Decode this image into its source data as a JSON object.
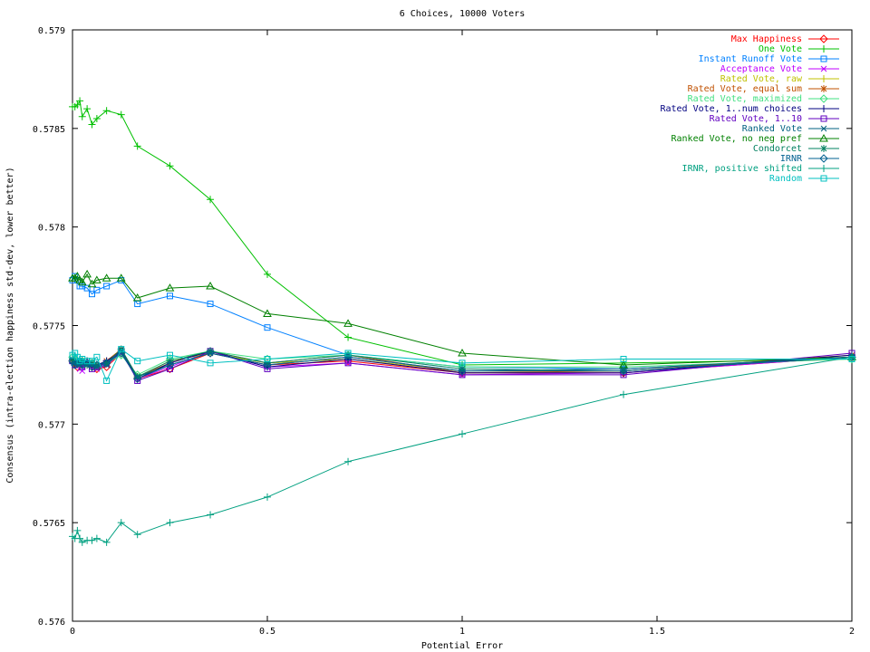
{
  "chart_data": {
    "type": "line",
    "title": "6 Choices, 10000 Voters",
    "xlabel": "Potential Error",
    "ylabel": "Consensus (intra-election happiness std-dev, lower better)",
    "xlim": [
      0,
      2
    ],
    "ylim": [
      0.576,
      0.579
    ],
    "xticks": [
      "0",
      "0.5",
      "1",
      "1.5",
      "2"
    ],
    "yticks": [
      "0.576",
      "0.5765",
      "0.577",
      "0.5775",
      "0.578",
      "0.5785",
      "0.579"
    ],
    "xtick_values": [
      0,
      0.5,
      1,
      1.5,
      2
    ],
    "ytick_values": [
      0.576,
      0.5765,
      0.577,
      0.5775,
      0.578,
      0.5785,
      0.579
    ],
    "grid": false,
    "legend_position": "top-right",
    "x": [
      0,
      0.00625,
      0.0125,
      0.01875,
      0.025,
      0.0375,
      0.05,
      0.0625,
      0.0875,
      0.125,
      0.1667,
      0.25,
      0.3536,
      0.5,
      0.7071,
      1,
      1.414,
      2
    ],
    "series": [
      {
        "name": "Max Happiness",
        "color": "#ff0000",
        "marker": "diamond",
        "values": [
          0.57732,
          0.57731,
          0.57729,
          0.57731,
          0.57732,
          0.57731,
          0.57729,
          0.57728,
          0.57729,
          0.57736,
          0.57723,
          0.57728,
          0.57736,
          0.5773,
          0.57732,
          0.57726,
          0.57726,
          0.57734
        ]
      },
      {
        "name": "One Vote",
        "color": "#00c000",
        "marker": "plus",
        "values": [
          0.57861,
          0.57861,
          0.57862,
          0.57864,
          0.57856,
          0.5786,
          0.57852,
          0.57855,
          0.57859,
          0.57857,
          0.57841,
          0.57831,
          0.57814,
          0.57776,
          0.57744,
          0.5773,
          0.57731,
          0.57733
        ]
      },
      {
        "name": "Instant Runoff Vote",
        "color": "#0080ff",
        "marker": "square",
        "values": [
          0.57773,
          0.57775,
          0.57773,
          0.5777,
          0.5777,
          0.57769,
          0.57766,
          0.57768,
          0.5777,
          0.57773,
          0.57761,
          0.57765,
          0.57761,
          0.57749,
          0.57735,
          0.57729,
          0.57728,
          0.57734
        ]
      },
      {
        "name": "Acceptance Vote",
        "color": "#c000ff",
        "marker": "x",
        "values": [
          0.57732,
          0.57731,
          0.5773,
          0.57728,
          0.57727,
          0.57731,
          0.5773,
          0.57728,
          0.5773,
          0.57736,
          0.57723,
          0.57729,
          0.57737,
          0.57729,
          0.57731,
          0.57725,
          0.57726,
          0.57734
        ]
      },
      {
        "name": "Rated Vote, raw",
        "color": "#c0c000",
        "marker": "plus",
        "values": [
          0.57733,
          0.57731,
          0.57731,
          0.57729,
          0.5773,
          0.57732,
          0.57729,
          0.5773,
          0.57731,
          0.57737,
          0.57724,
          0.57732,
          0.57736,
          0.57731,
          0.57733,
          0.57727,
          0.57727,
          0.57734
        ]
      },
      {
        "name": "Rated Vote, equal sum",
        "color": "#c05000",
        "marker": "star",
        "values": [
          0.57732,
          0.5773,
          0.57732,
          0.5773,
          0.57731,
          0.5773,
          0.5773,
          0.57729,
          0.57732,
          0.57738,
          0.57724,
          0.57731,
          0.57737,
          0.57731,
          0.57735,
          0.57726,
          0.57727,
          0.57735
        ]
      },
      {
        "name": "Rated Vote, maximized",
        "color": "#40e080",
        "marker": "diamond",
        "values": [
          0.57734,
          0.57733,
          0.57732,
          0.57731,
          0.57732,
          0.57731,
          0.57731,
          0.5773,
          0.57731,
          0.57735,
          0.57725,
          0.57733,
          0.57737,
          0.57733,
          0.57735,
          0.57729,
          0.57729,
          0.57733
        ]
      },
      {
        "name": "Rated Vote, 1..num choices",
        "color": "#000080",
        "marker": "plus",
        "values": [
          0.57731,
          0.5773,
          0.57732,
          0.57731,
          0.5773,
          0.57732,
          0.57729,
          0.5773,
          0.57732,
          0.57737,
          0.57723,
          0.57731,
          0.57737,
          0.57729,
          0.57733,
          0.57726,
          0.57726,
          0.57735
        ]
      },
      {
        "name": "Rated Vote, 1..10",
        "color": "#6000c0",
        "marker": "square",
        "values": [
          0.57732,
          0.5773,
          0.57731,
          0.57731,
          0.57729,
          0.57731,
          0.57728,
          0.57729,
          0.57731,
          0.57737,
          0.57722,
          0.57728,
          0.57737,
          0.57728,
          0.57731,
          0.57725,
          0.57725,
          0.57736
        ]
      },
      {
        "name": "Ranked Vote",
        "color": "#006080",
        "marker": "x",
        "values": [
          0.57732,
          0.57731,
          0.57731,
          0.5773,
          0.57731,
          0.5773,
          0.5773,
          0.57729,
          0.5773,
          0.57737,
          0.57724,
          0.5773,
          0.57736,
          0.5773,
          0.57734,
          0.57727,
          0.57728,
          0.57734
        ]
      },
      {
        "name": "Ranked Vote, no neg pref",
        "color": "#008000",
        "marker": "triangle",
        "values": [
          0.57774,
          0.57774,
          0.57775,
          0.57773,
          0.57772,
          0.57776,
          0.57771,
          0.57773,
          0.57774,
          0.57774,
          0.57764,
          0.57769,
          0.5777,
          0.57756,
          0.57751,
          0.57736,
          0.5773,
          0.57734
        ]
      },
      {
        "name": "Condorcet",
        "color": "#008060",
        "marker": "star",
        "values": [
          0.57733,
          0.57731,
          0.57732,
          0.57731,
          0.57732,
          0.5773,
          0.57731,
          0.5773,
          0.57731,
          0.57738,
          0.57724,
          0.57732,
          0.57737,
          0.57731,
          0.57735,
          0.57728,
          0.57727,
          0.57734
        ]
      },
      {
        "name": "IRNR",
        "color": "#006090",
        "marker": "diamond",
        "values": [
          0.57732,
          0.5773,
          0.57731,
          0.57732,
          0.5773,
          0.57731,
          0.57729,
          0.5773,
          0.57731,
          0.57736,
          0.57723,
          0.5773,
          0.57736,
          0.5773,
          0.57734,
          0.57727,
          0.57727,
          0.57734
        ]
      },
      {
        "name": "IRNR, positive shifted",
        "color": "#00a080",
        "marker": "plus",
        "values": [
          0.57643,
          0.57642,
          0.57646,
          0.57642,
          0.5764,
          0.57641,
          0.57641,
          0.57642,
          0.5764,
          0.5765,
          0.57644,
          0.5765,
          0.57654,
          0.57663,
          0.57681,
          0.57695,
          0.57715,
          0.57734
        ]
      },
      {
        "name": "Random",
        "color": "#00c0c0",
        "marker": "square",
        "values": [
          0.57735,
          0.57736,
          0.57734,
          0.57732,
          0.57733,
          0.57732,
          0.57732,
          0.57734,
          0.57722,
          0.57738,
          0.57732,
          0.57735,
          0.57731,
          0.57733,
          0.57736,
          0.57731,
          0.57733,
          0.57733
        ]
      }
    ]
  }
}
